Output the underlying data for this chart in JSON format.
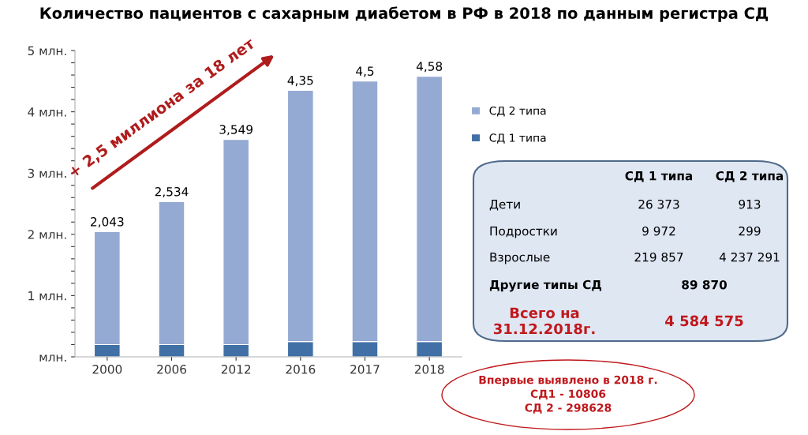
{
  "chart_data": {
    "type": "bar",
    "stacked": true,
    "title": "Количество пациентов с сахарным диабетом в РФ в 2018 по данным регистра СД",
    "categories": [
      "2000",
      "2006",
      "2012",
      "2016",
      "2017",
      "2018"
    ],
    "series": [
      {
        "name": "СД 1 типа",
        "color": "#4170a6",
        "values": [
          0.2,
          0.2,
          0.2,
          0.25,
          0.25,
          0.25
        ]
      },
      {
        "name": "СД 2 типа",
        "color": "#94aad3",
        "values": [
          1.843,
          2.334,
          3.349,
          4.1,
          4.25,
          4.33
        ]
      }
    ],
    "totals": [
      "2,043",
      "2,534",
      "3,549",
      "4,35",
      "4,5",
      "4,58"
    ],
    "ylim": [
      0,
      5
    ],
    "yticks": [
      {
        "value": 0,
        "label": "млн."
      },
      {
        "value": 0.2,
        "label": null
      },
      {
        "value": 0.4,
        "label": null
      },
      {
        "value": 0.6,
        "label": null
      },
      {
        "value": 0.8,
        "label": null
      },
      {
        "value": 1,
        "label": "1 млн."
      },
      {
        "value": 1.2,
        "label": null
      },
      {
        "value": 1.4,
        "label": null
      },
      {
        "value": 1.6,
        "label": null
      },
      {
        "value": 1.8,
        "label": null
      },
      {
        "value": 2,
        "label": "2 млн."
      },
      {
        "value": 2.2,
        "label": null
      },
      {
        "value": 2.4,
        "label": null
      },
      {
        "value": 2.6,
        "label": null
      },
      {
        "value": 2.8,
        "label": null
      },
      {
        "value": 3,
        "label": "3 млн."
      },
      {
        "value": 3.2,
        "label": null
      },
      {
        "value": 3.4,
        "label": null
      },
      {
        "value": 3.6,
        "label": null
      },
      {
        "value": 3.8,
        "label": null
      },
      {
        "value": 4,
        "label": "4 млн."
      },
      {
        "value": 4.2,
        "label": null
      },
      {
        "value": 4.4,
        "label": null
      },
      {
        "value": 4.6,
        "label": null
      },
      {
        "value": 4.8,
        "label": null
      },
      {
        "value": 5,
        "label": "5 млн."
      }
    ],
    "grid": false,
    "legend": "right",
    "annotations": [
      "+ 2,5 миллиона за 18 лет",
      "СД 1 типа",
      "СД 2 типа",
      "Дети",
      "26 373",
      "913",
      "Подростки",
      "9 972",
      "299",
      "Взрослые",
      "219 857",
      "4 237 291",
      "Другие типы СД",
      "89 870",
      "Всего на\n31.12.2018г.",
      "4 584 575",
      "Впервые выявлено в 2018 г.\nСД1 - 10806\nСД 2 - 298628"
    ]
  }
}
